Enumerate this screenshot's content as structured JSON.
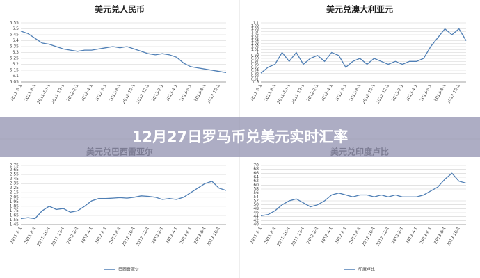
{
  "banner_title": "12月27日罗马币兑美元实时汇率",
  "chart_data": [
    {
      "type": "line",
      "title": "美元兑人民币",
      "color": "#4f7fb5",
      "grid": true,
      "categories": [
        "2011-6-1",
        null,
        "2011-8-1",
        null,
        "2011-10-1",
        null,
        "2011-12-1",
        null,
        "2012-2-1",
        null,
        "2012-4-1",
        null,
        "2012-6-1",
        null,
        "2012-8-1",
        null,
        "2012-10-1",
        null,
        "2012-12-1",
        null,
        "2013-2-1",
        null,
        "2013-4-1",
        null,
        "2013-6-1",
        null,
        "2013-8-1",
        null,
        "2013-10-1",
        null
      ],
      "values": [
        6.48,
        6.46,
        6.42,
        6.38,
        6.37,
        6.35,
        6.33,
        6.32,
        6.31,
        6.32,
        6.32,
        6.33,
        6.34,
        6.35,
        6.34,
        6.35,
        6.33,
        6.31,
        6.29,
        6.28,
        6.29,
        6.28,
        6.26,
        6.21,
        6.18,
        6.17,
        6.16,
        6.15,
        6.14,
        6.13
      ],
      "ylim": [
        6.05,
        6.55
      ],
      "yticks": [
        6.05,
        6.1,
        6.15,
        6.2,
        6.25,
        6.3,
        6.35,
        6.4,
        6.45,
        6.5,
        6.55
      ]
    },
    {
      "type": "line",
      "title": "美元兑澳大利亚元",
      "color": "#4f7fb5",
      "grid": true,
      "categories": [
        "2011-6-1",
        null,
        "2011-8-1",
        null,
        "2011-10-1",
        null,
        "2011-12-1",
        null,
        "2012-2-1",
        null,
        "2012-4-1",
        null,
        "2012-6-1",
        null,
        "2012-8-1",
        null,
        "2012-10-1",
        null,
        "2012-12-1",
        null,
        "2013-2-1",
        null,
        "2013-4-1",
        null,
        "2013-6-1",
        null,
        "2013-8-1",
        null,
        "2013-10-1",
        null
      ],
      "values": [
        0.93,
        0.95,
        0.96,
        1.0,
        0.97,
        1.0,
        0.96,
        0.98,
        0.99,
        0.97,
        1.0,
        0.99,
        0.95,
        0.97,
        0.98,
        0.96,
        0.98,
        0.97,
        0.96,
        0.97,
        0.96,
        0.97,
        0.97,
        0.98,
        1.02,
        1.05,
        1.08,
        1.06,
        1.08,
        1.04
      ],
      "ylim": [
        0.9,
        1.1
      ],
      "yticks": [
        0.9,
        0.91,
        0.92,
        0.93,
        0.94,
        0.95,
        0.96,
        0.97,
        0.98,
        0.99,
        1,
        1.01,
        1.02,
        1.03,
        1.04,
        1.05,
        1.06,
        1.07,
        1.08,
        1.09,
        1.1
      ]
    },
    {
      "type": "line",
      "title": "美元兑巴西雷亚尔",
      "grid": true,
      "categories": [
        "2011-6-1",
        null,
        "2011-8-1",
        null,
        "2011-10-1",
        null,
        "2011-12-1",
        null,
        "2012-2-1",
        null,
        "2012-4-1",
        null,
        "2012-6-1",
        null,
        "2012-8-1",
        null,
        "2012-10-1",
        null,
        "2012-12-1",
        null,
        "2013-2-1",
        null,
        "2013-4-1",
        null,
        "2013-6-1",
        null,
        "2013-8-1",
        null,
        "2013-10-1",
        null
      ],
      "series": [
        {
          "name": "巴西雷亚尔",
          "color": "#4f7fb5",
          "values": [
            1.58,
            1.6,
            1.58,
            1.75,
            1.85,
            1.78,
            1.8,
            1.72,
            1.75,
            1.85,
            1.97,
            2.02,
            2.02,
            2.03,
            2.04,
            2.03,
            2.05,
            2.08,
            2.07,
            2.05,
            2.0,
            2.02,
            2.0,
            2.05,
            2.15,
            2.25,
            2.35,
            2.4,
            2.25,
            2.2
          ]
        }
      ],
      "ylim": [
        1.45,
        2.75
      ],
      "yticks": [
        1.45,
        1.55,
        1.65,
        1.75,
        1.85,
        1.95,
        2.05,
        2.15,
        2.25,
        2.35,
        2.45,
        2.55,
        2.65,
        2.75
      ]
    },
    {
      "type": "line",
      "title": "美元兑印度卢比",
      "grid": true,
      "categories": [
        "2011-6-1",
        null,
        "2011-8-1",
        null,
        "2011-10-1",
        null,
        "2011-12-1",
        null,
        "2012-2-1",
        null,
        "2012-4-1",
        null,
        "2012-6-1",
        null,
        "2012-8-1",
        null,
        "2012-10-1",
        null,
        "2012-12-1",
        null,
        "2013-2-1",
        null,
        "2013-4-1",
        null,
        "2013-6-1",
        null,
        "2013-8-1",
        null,
        "2013-10-1",
        null
      ],
      "series": [
        {
          "name": "印度卢比",
          "color": "#4f7fb5",
          "values": [
            44.5,
            45,
            47,
            50,
            52,
            53,
            51,
            49,
            50,
            52,
            55,
            56,
            55,
            54,
            55,
            55,
            54,
            55,
            54,
            55,
            54,
            54,
            54,
            55,
            57,
            59,
            63,
            66,
            62,
            61
          ]
        }
      ],
      "ylim": [
        40,
        70
      ],
      "yticks": [
        40,
        42,
        44,
        46,
        48,
        50,
        52,
        54,
        56,
        58,
        60,
        62,
        64,
        66,
        68,
        70
      ]
    }
  ]
}
